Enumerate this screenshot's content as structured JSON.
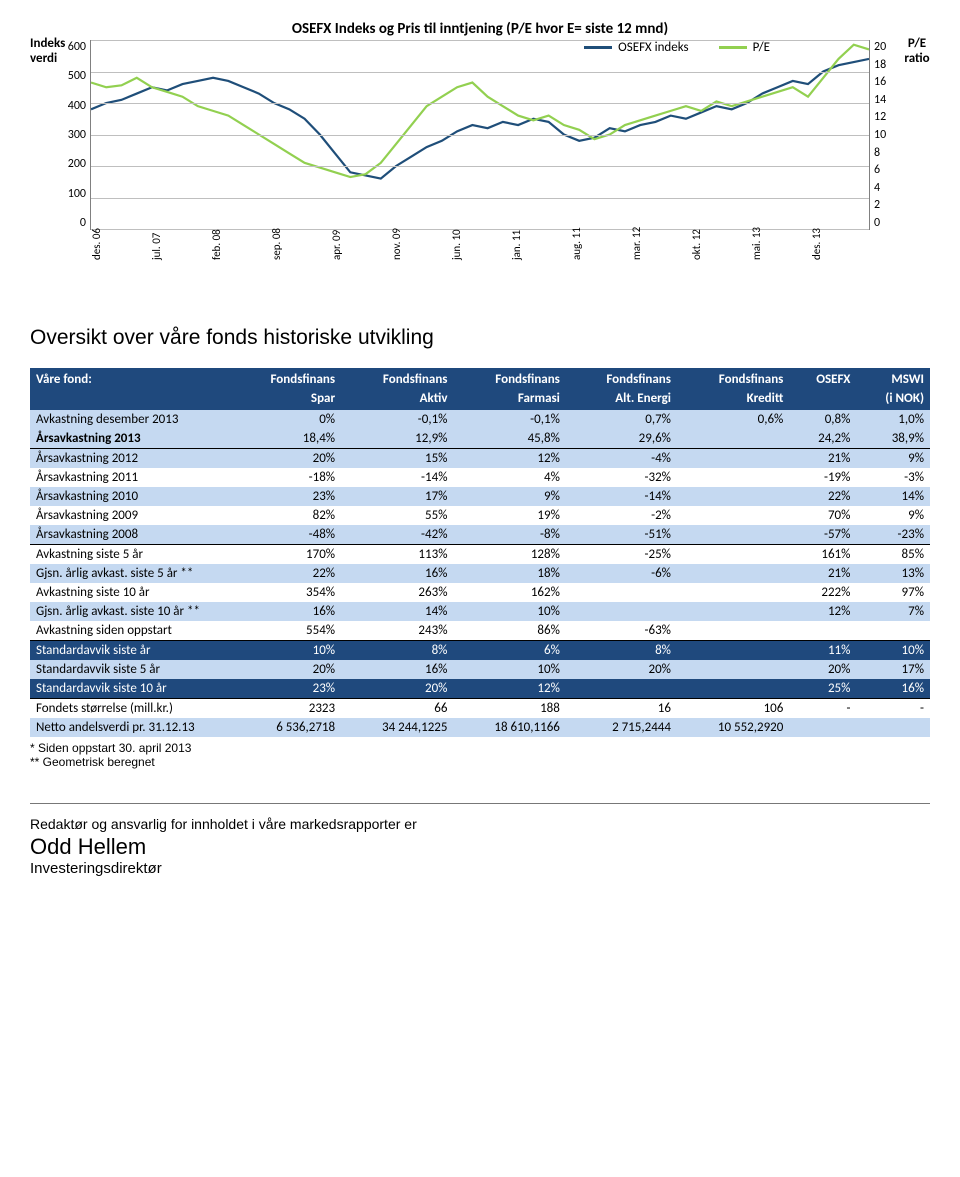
{
  "chart": {
    "title": "OSEFX Indeks og Pris til inntjening (P/E hvor E= siste 12 mnd)",
    "y_left_label": "Indeks verdi",
    "y_right_label": "P/E ratio",
    "legend": [
      {
        "label": "OSEFX indeks",
        "color": "#1f4e79"
      },
      {
        "label": "P/E",
        "color": "#92d050"
      }
    ],
    "y_left_ticks": [
      "600",
      "500",
      "400",
      "300",
      "200",
      "100",
      "0"
    ],
    "y_right_ticks": [
      "20",
      "18",
      "16",
      "14",
      "12",
      "10",
      "8",
      "6",
      "4",
      "2",
      "0"
    ],
    "x_ticks": [
      "des. 06",
      "jul. 07",
      "feb. 08",
      "sep. 08",
      "apr. 09",
      "nov. 09",
      "jun. 10",
      "jan. 11",
      "aug. 11",
      "mar. 12",
      "okt. 12",
      "mai. 13",
      "des. 13"
    ],
    "grid_color": "#bfbfbf",
    "axis_color": "#808080",
    "series": {
      "osefx": {
        "color": "#1f4e79",
        "width": 2.2,
        "y_max": 600,
        "pts": [
          380,
          400,
          410,
          430,
          450,
          440,
          460,
          470,
          480,
          470,
          450,
          430,
          400,
          380,
          350,
          300,
          240,
          180,
          170,
          160,
          200,
          230,
          260,
          280,
          310,
          330,
          320,
          340,
          330,
          350,
          340,
          300,
          280,
          290,
          320,
          310,
          330,
          340,
          360,
          350,
          370,
          390,
          380,
          400,
          430,
          450,
          470,
          460,
          500,
          520,
          530,
          540
        ]
      },
      "pe": {
        "color": "#92d050",
        "width": 2.2,
        "y_max": 20,
        "pts": [
          15.5,
          15,
          15.2,
          16,
          15,
          14.5,
          14,
          13,
          12.5,
          12,
          11,
          10,
          9,
          8,
          7,
          6.5,
          6,
          5.5,
          5.8,
          7,
          9,
          11,
          13,
          14,
          15,
          15.5,
          14,
          13,
          12,
          11.5,
          12,
          11,
          10.5,
          9.5,
          10,
          11,
          11.5,
          12,
          12.5,
          13,
          12.5,
          13.5,
          13,
          13.5,
          14,
          14.5,
          15,
          14,
          16,
          18,
          19.5,
          19
        ]
      }
    }
  },
  "section_title": "Oversikt over våre fonds historiske utvikling",
  "table": {
    "head1": [
      "Våre fond:",
      "Fondsfinans",
      "Fondsfinans",
      "Fondsfinans",
      "Fondsfinans",
      "Fondsfinans",
      "OSEFX",
      "MSWI"
    ],
    "head2": [
      "",
      "Spar",
      "Aktiv",
      "Farmasi",
      "Alt. Energi",
      "Kreditt",
      "",
      "(i NOK)"
    ],
    "rows": [
      {
        "band": "band",
        "cells": [
          "Avkastning desember 2013",
          "0%",
          "-0,1%",
          "-0,1%",
          "0,7%",
          "0,6%",
          "0,8%",
          "1,0%"
        ]
      },
      {
        "band": "band",
        "bold": true,
        "cells": [
          "Årsavkastning 2013",
          "18,4%",
          "12,9%",
          "45,8%",
          "29,6%",
          "",
          "24,2%",
          "38,9%"
        ]
      },
      {
        "band": "band",
        "sep": true,
        "cells": [
          "Årsavkastning 2012",
          "20%",
          "15%",
          "12%",
          "-4%",
          "",
          "21%",
          "9%"
        ]
      },
      {
        "band": "",
        "cells": [
          "Årsavkastning 2011",
          "-18%",
          "-14%",
          "4%",
          "-32%",
          "",
          "-19%",
          "-3%"
        ]
      },
      {
        "band": "band",
        "cells": [
          "Årsavkastning 2010",
          "23%",
          "17%",
          "9%",
          "-14%",
          "",
          "22%",
          "14%"
        ]
      },
      {
        "band": "",
        "cells": [
          "Årsavkastning 2009",
          "82%",
          "55%",
          "19%",
          "-2%",
          "",
          "70%",
          "9%"
        ]
      },
      {
        "band": "band",
        "cells": [
          "Årsavkastning 2008",
          "-48%",
          "-42%",
          "-8%",
          "-51%",
          "",
          "-57%",
          "-23%"
        ]
      },
      {
        "band": "",
        "sep": true,
        "cells": [
          "Avkastning siste 5 år",
          "170%",
          "113%",
          "128%",
          "-25%",
          "",
          "161%",
          "85%"
        ]
      },
      {
        "band": "band",
        "cells": [
          "Gjsn. årlig avkast. siste 5 år **",
          "22%",
          "16%",
          "18%",
          "-6%",
          "",
          "21%",
          "13%"
        ]
      },
      {
        "band": "",
        "cells": [
          "Avkastning siste 10 år",
          "354%",
          "263%",
          "162%",
          "",
          "",
          "222%",
          "97%"
        ]
      },
      {
        "band": "band",
        "cells": [
          "Gjsn. årlig avkast. siste 10 år **",
          "16%",
          "14%",
          "10%",
          "",
          "",
          "12%",
          "7%"
        ]
      },
      {
        "band": "",
        "cells": [
          "Avkastning siden oppstart",
          "554%",
          "243%",
          "86%",
          "-63%",
          "",
          "",
          ""
        ]
      },
      {
        "band": "band-dark",
        "sep": true,
        "cells": [
          "Standardavvik siste år",
          "10%",
          "8%",
          "6%",
          "8%",
          "",
          "11%",
          "10%"
        ]
      },
      {
        "band": "band",
        "cells": [
          "Standardavvik siste 5 år",
          "20%",
          "16%",
          "10%",
          "20%",
          "",
          "20%",
          "17%"
        ]
      },
      {
        "band": "band-dark",
        "cells": [
          "Standardavvik siste 10 år",
          "23%",
          "20%",
          "12%",
          "",
          "",
          "25%",
          "16%"
        ]
      },
      {
        "band": "",
        "sep": true,
        "cells": [
          "Fondets størrelse (mill.kr.)",
          "2323",
          "66",
          "188",
          "16",
          "106",
          "-",
          "-"
        ]
      },
      {
        "band": "band",
        "cells": [
          "Netto andelsverdi pr. 31.12.13",
          "6 536,2718",
          "34 244,1225",
          "18 610,1166",
          "2 715,2444",
          "10 552,2920",
          "",
          ""
        ]
      }
    ]
  },
  "footnotes": [
    "*  Siden oppstart 30. april 2013",
    "** Geometrisk beregnet"
  ],
  "editor": {
    "line": "Redaktør og ansvarlig for innholdet i våre markedsrapporter er",
    "name": "Odd Hellem",
    "role": "Investeringsdirektør"
  }
}
